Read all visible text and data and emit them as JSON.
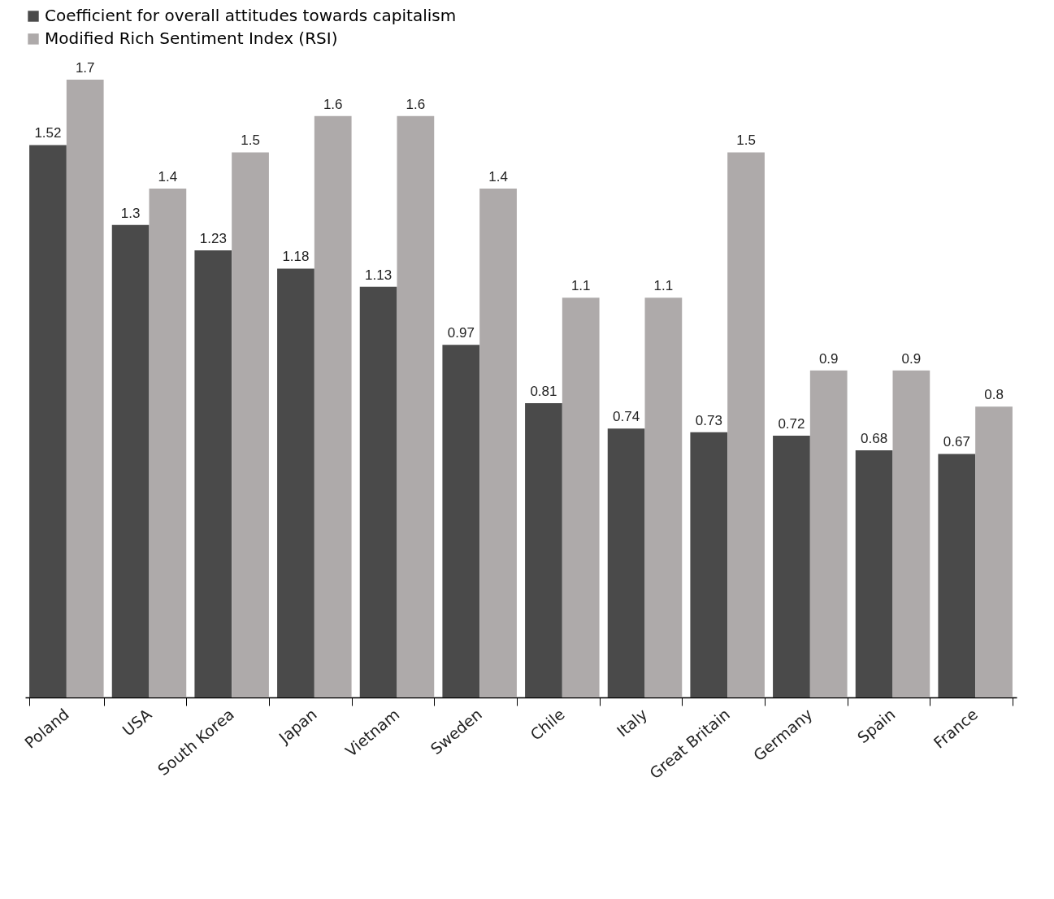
{
  "chart_data": {
    "type": "bar",
    "categories": [
      "Poland",
      "USA",
      "South Korea",
      "Japan",
      "Vietnam",
      "Sweden",
      "Chile",
      "Italy",
      "Great Britain",
      "Germany",
      "Spain",
      "France"
    ],
    "series": [
      {
        "name": "Coefficient for overall attitudes towards capitalism",
        "color": "#4a4a4a",
        "values": [
          1.52,
          1.3,
          1.23,
          1.18,
          1.13,
          0.97,
          0.81,
          0.74,
          0.73,
          0.72,
          0.68,
          0.67
        ]
      },
      {
        "name": "Modified Rich Sentiment Index (RSI)",
        "color": "#aeaaaa",
        "values": [
          1.7,
          1.4,
          1.5,
          1.6,
          1.6,
          1.4,
          1.1,
          1.1,
          1.5,
          0.9,
          0.9,
          0.8
        ]
      }
    ],
    "data_labels": true,
    "legend": "top",
    "grid": false
  }
}
